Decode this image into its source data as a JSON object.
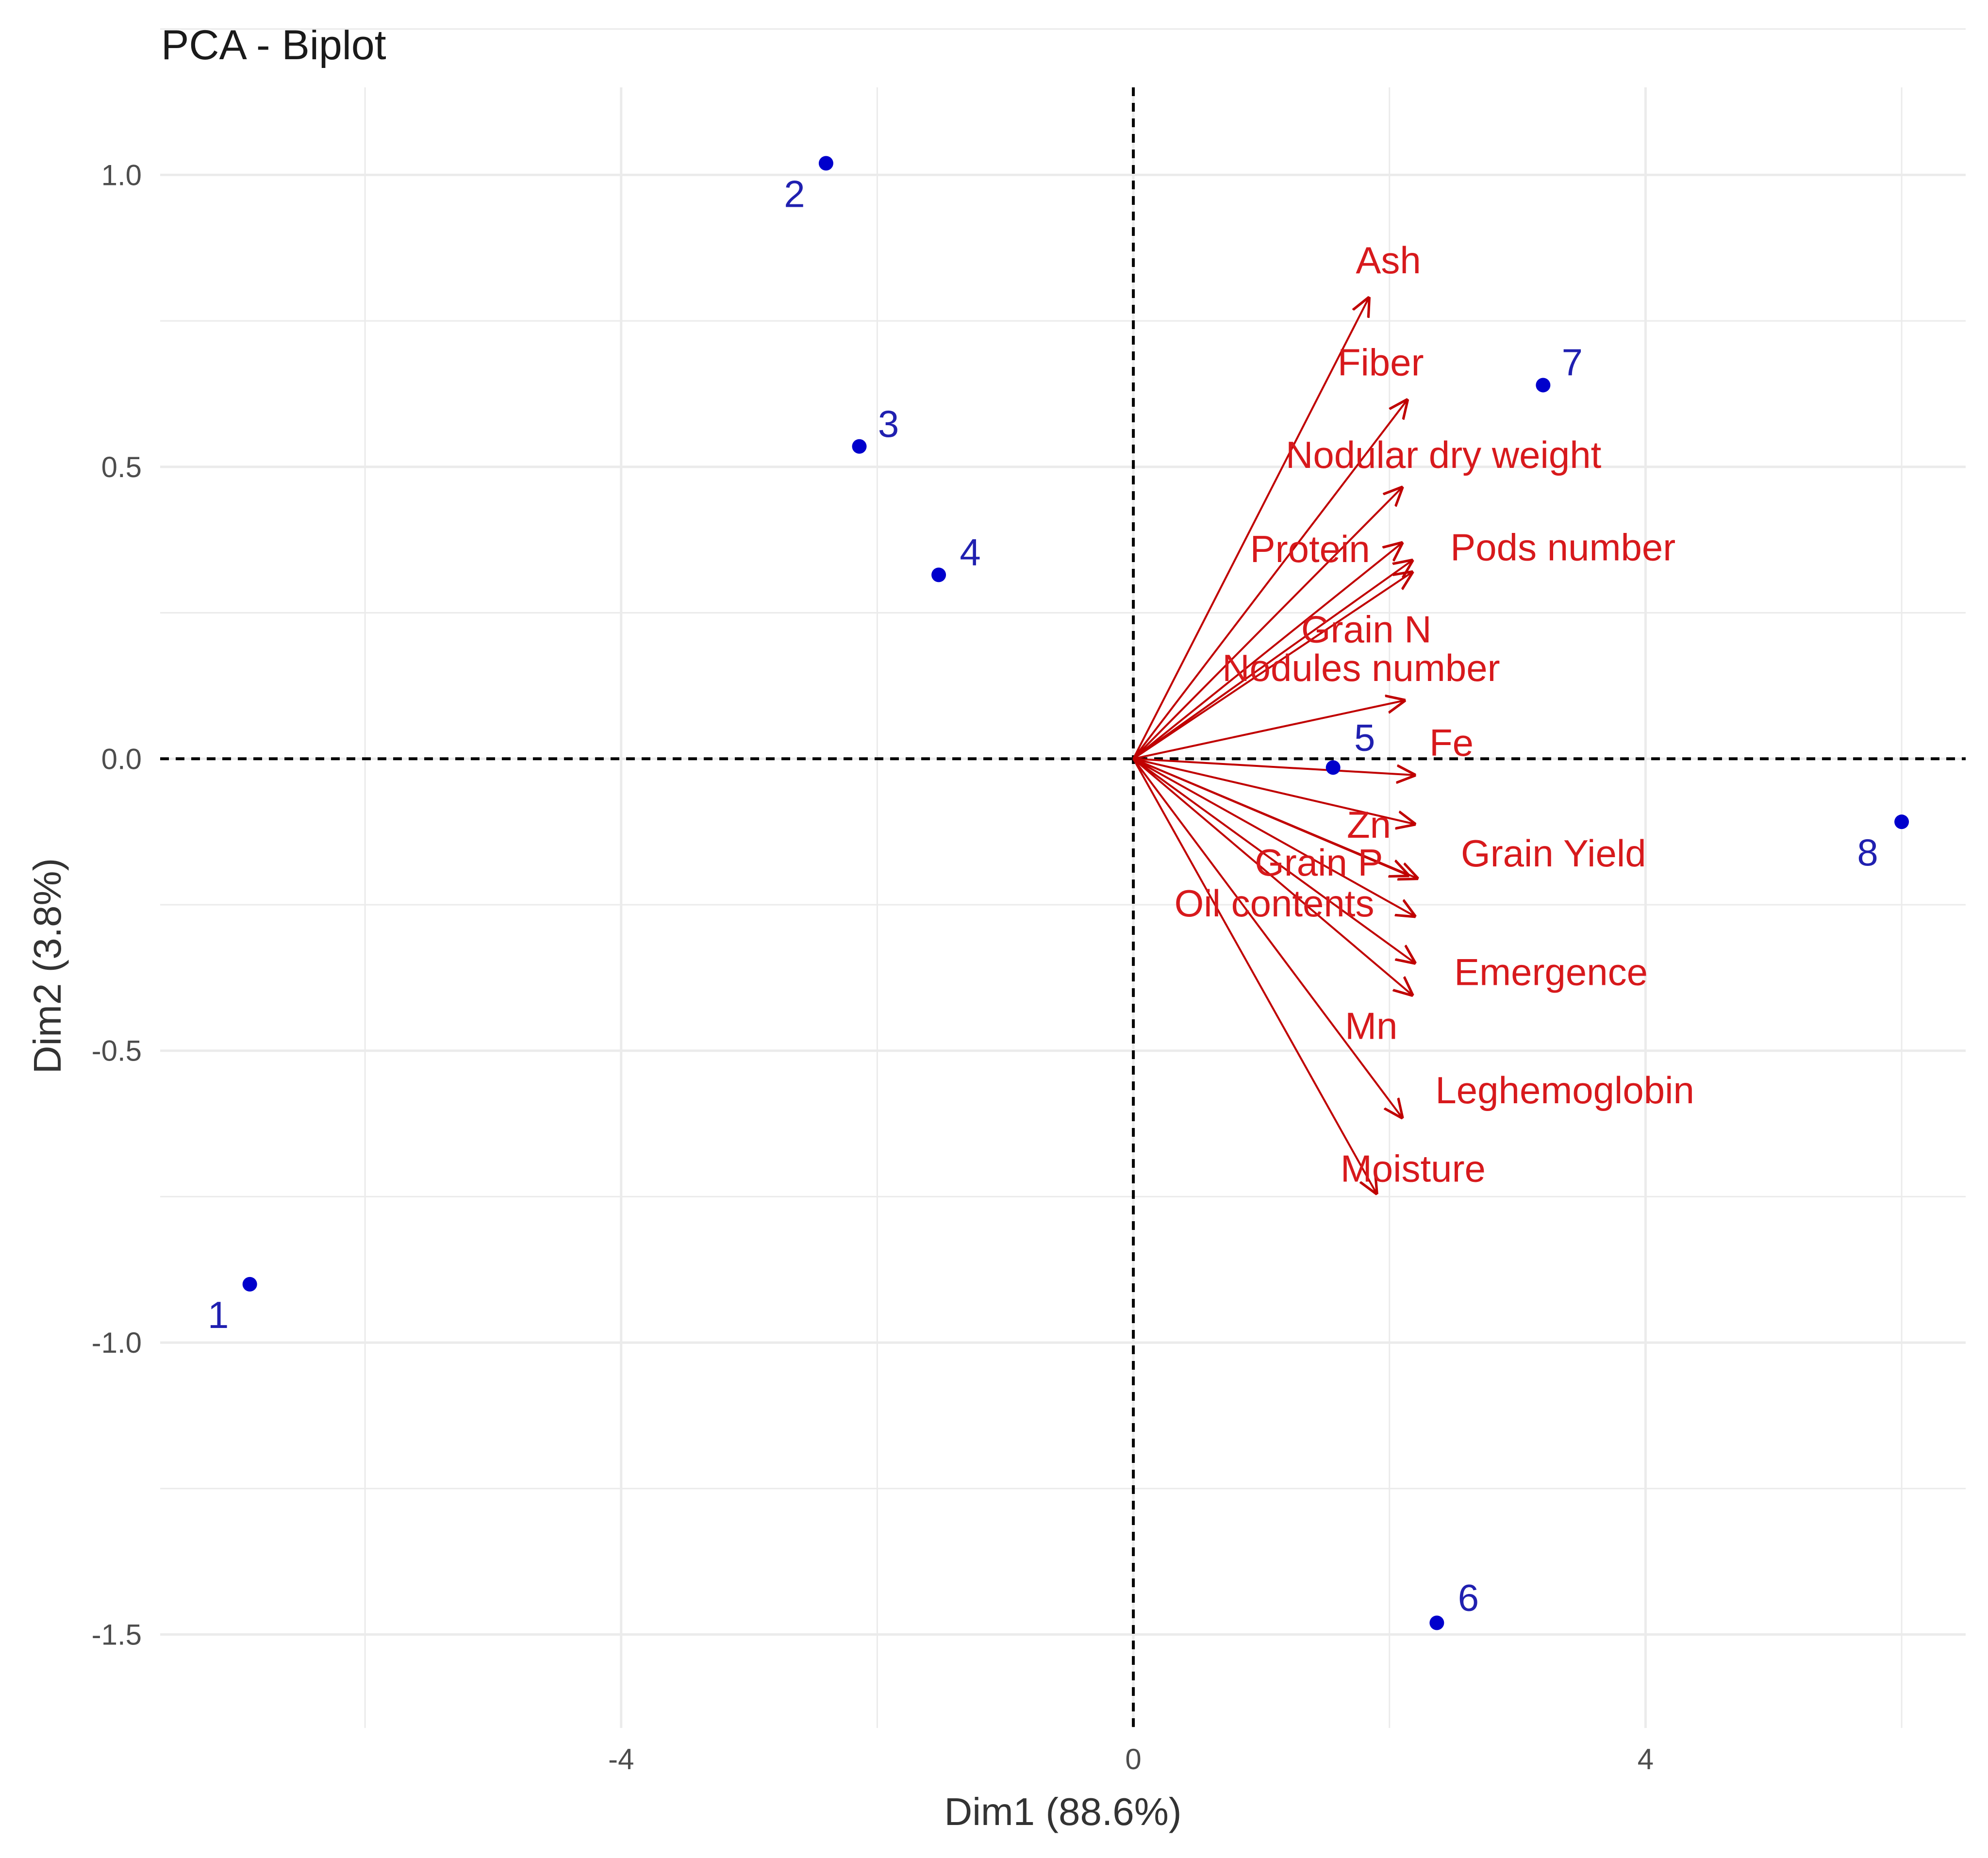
{
  "chart_data": {
    "type": "scatter",
    "subtype": "pca-biplot",
    "title": "PCA - Biplot",
    "xlabel": "Dim1 (88.6%)",
    "ylabel": "Dim2 (3.8%)",
    "xlim": [
      -7.6,
      6.5
    ],
    "ylim": [
      -1.66,
      1.15
    ],
    "xticks": [
      -4,
      0,
      4
    ],
    "xtick_labels": [
      "-4",
      "0",
      "4"
    ],
    "yticks": [
      1.0,
      0.5,
      0.0,
      -0.5,
      -1.0,
      -1.5
    ],
    "ytick_labels": [
      "1.0",
      "0.5",
      "0.0",
      "-0.5",
      "-1.0",
      "-1.5"
    ],
    "grid": true,
    "reference_lines": {
      "x": 0,
      "y": 0,
      "style": "dashed"
    },
    "colors": {
      "individuals": "#0000cc",
      "individual_labels": "#2020b0",
      "variables": "#c00000",
      "variable_labels": "#d7191c",
      "grid": "#ebebeb"
    },
    "individuals": [
      {
        "label": "1",
        "x": -6.9,
        "y": -0.9
      },
      {
        "label": "2",
        "x": -2.4,
        "y": 1.02
      },
      {
        "label": "3",
        "x": -2.14,
        "y": 0.535
      },
      {
        "label": "4",
        "x": -1.52,
        "y": 0.315
      },
      {
        "label": "5",
        "x": 1.56,
        "y": -0.015
      },
      {
        "label": "6",
        "x": 2.37,
        "y": -1.48
      },
      {
        "label": "7",
        "x": 3.2,
        "y": 0.64
      },
      {
        "label": "8",
        "x": 6.0,
        "y": -0.108
      }
    ],
    "variables": [
      {
        "name": "Ash",
        "x": 1.84,
        "y": 0.79
      },
      {
        "name": "Fiber",
        "x": 2.14,
        "y": 0.615
      },
      {
        "name": "Nodular dry weight",
        "x": 2.1,
        "y": 0.465
      },
      {
        "name": "Protein",
        "x": 2.1,
        "y": 0.37
      },
      {
        "name": "Pods number",
        "x": 2.18,
        "y": 0.34
      },
      {
        "name": "Grain N",
        "x": 2.18,
        "y": 0.32
      },
      {
        "name": "Nodules number",
        "x": 2.12,
        "y": 0.1
      },
      {
        "name": "Fe",
        "x": 2.2,
        "y": -0.028
      },
      {
        "name": "Zn",
        "x": 2.2,
        "y": -0.112
      },
      {
        "name": "Grain P",
        "x": 2.15,
        "y": -0.2
      },
      {
        "name": "Grain Yield",
        "x": 2.22,
        "y": -0.205
      },
      {
        "name": "Oil contents",
        "x": 2.2,
        "y": -0.27
      },
      {
        "name": "Emergence",
        "x": 2.2,
        "y": -0.35
      },
      {
        "name": "Mn",
        "x": 2.18,
        "y": -0.405
      },
      {
        "name": "Leghemoglobin",
        "x": 2.1,
        "y": -0.615
      },
      {
        "name": "Moisture",
        "x": 1.9,
        "y": -0.745
      }
    ]
  }
}
